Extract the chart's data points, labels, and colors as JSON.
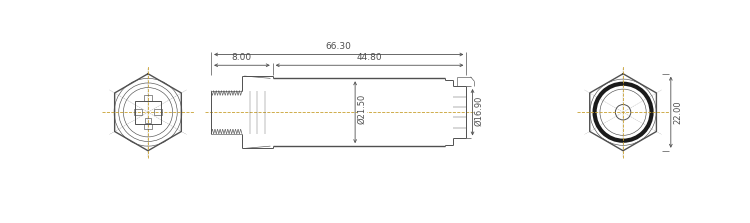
{
  "bg_color": "#ffffff",
  "line_color": "#505050",
  "dim_color": "#505050",
  "centerline_color": "#c8a030",
  "fig_width": 7.5,
  "fig_height": 2.23,
  "dpi": 100,
  "annotations": {
    "dim_66_30": "66.30",
    "dim_8_00": "8.00",
    "dim_44_80": "44.80",
    "dim_21_50": "Ø21.50",
    "dim_16_90": "Ø16.90",
    "dim_22_00": "22.00"
  }
}
